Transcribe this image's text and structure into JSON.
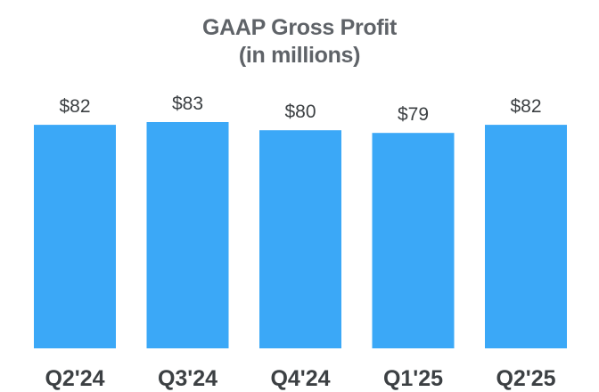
{
  "chart_data": {
    "type": "bar",
    "title": "GAAP Gross Profit",
    "subtitle": "(in millions)",
    "categories": [
      "Q2'24",
      "Q3'24",
      "Q4'24",
      "Q1'25",
      "Q2'25"
    ],
    "values": [
      82,
      83,
      80,
      79,
      82
    ],
    "value_labels": [
      "$82",
      "$83",
      "$80",
      "$79",
      "$82"
    ],
    "ylim": [
      0,
      83
    ],
    "grid": false,
    "legend": "none",
    "bar_color": "#3ba8f7"
  }
}
